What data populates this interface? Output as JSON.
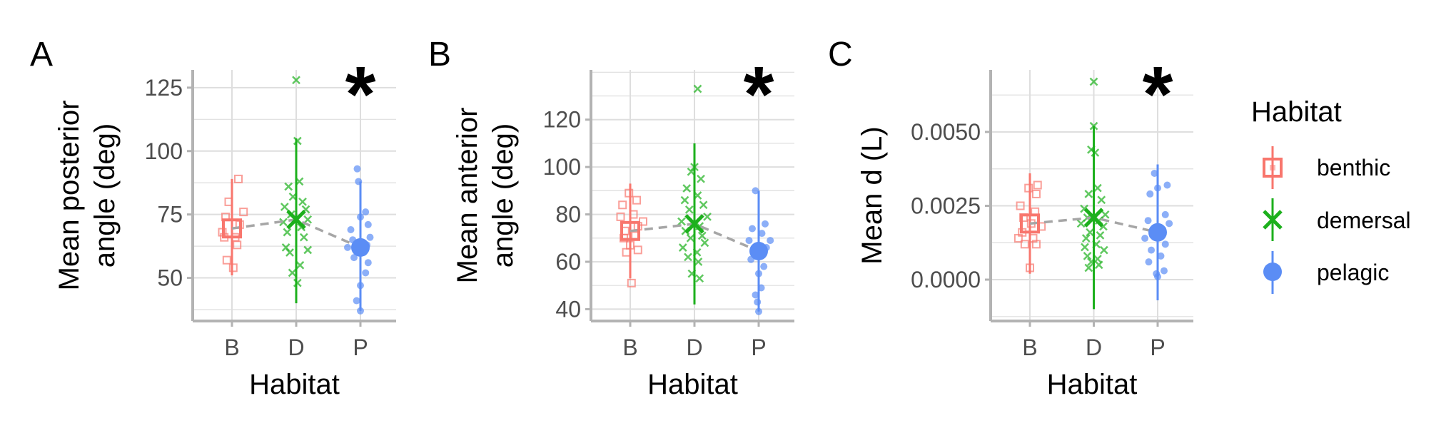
{
  "colors": {
    "benthic": "#F8766D",
    "demersal": "#1DB01D",
    "pelagic": "#5B8DF5",
    "grid": "#dedede",
    "axis": "#b3b3b3",
    "trend": "#a6a6a6"
  },
  "legend": {
    "title": "Habitat",
    "items": [
      {
        "key": "benthic",
        "label": "benthic",
        "shape": "square"
      },
      {
        "key": "demersal",
        "label": "demersal",
        "shape": "cross"
      },
      {
        "key": "pelagic",
        "label": "pelagic",
        "shape": "circle"
      }
    ]
  },
  "chart_data": [
    {
      "type": "scatter",
      "panel_label": "A",
      "significance": "*",
      "xlabel": "Habitat",
      "ylabel": [
        "Mean posterior",
        "angle (deg)"
      ],
      "categories": [
        "B",
        "D",
        "P"
      ],
      "ylim": [
        33,
        132
      ],
      "yticks": [
        50,
        75,
        100,
        125
      ],
      "ytick_labels": [
        "50",
        "75",
        "100",
        "125"
      ],
      "grid": true,
      "series": [
        {
          "habitat": "benthic",
          "mean": 69.5,
          "low": 51,
          "high": 89,
          "points": [
            [
              0.1,
              89
            ],
            [
              -0.05,
              80
            ],
            [
              0.18,
              76
            ],
            [
              -0.1,
              74
            ],
            [
              0.12,
              71
            ],
            [
              -0.15,
              68
            ],
            [
              0.05,
              66
            ],
            [
              -0.12,
              66
            ],
            [
              0.08,
              63
            ],
            [
              -0.08,
              57
            ],
            [
              0.02,
              54
            ]
          ]
        },
        {
          "habitat": "demersal",
          "mean": 73,
          "low": 40,
          "high": 105,
          "points": [
            [
              0.0,
              128
            ],
            [
              0.02,
              104
            ],
            [
              0.05,
              88
            ],
            [
              -0.12,
              86
            ],
            [
              -0.05,
              82
            ],
            [
              0.1,
              80
            ],
            [
              -0.18,
              78
            ],
            [
              0.15,
              77
            ],
            [
              -0.08,
              75
            ],
            [
              0.18,
              73
            ],
            [
              -0.2,
              72
            ],
            [
              0.08,
              70
            ],
            [
              -0.14,
              68
            ],
            [
              0.12,
              66
            ],
            [
              -0.16,
              62
            ],
            [
              0.18,
              61
            ],
            [
              -0.1,
              60
            ],
            [
              0.06,
              55
            ],
            [
              -0.06,
              52
            ],
            [
              0.02,
              48
            ]
          ]
        },
        {
          "habitat": "pelagic",
          "mean": 62,
          "low": 37,
          "high": 88,
          "points": [
            [
              -0.05,
              93
            ],
            [
              -0.03,
              88
            ],
            [
              0.08,
              76
            ],
            [
              0.0,
              74
            ],
            [
              0.12,
              71
            ],
            [
              -0.15,
              69
            ],
            [
              0.15,
              66
            ],
            [
              -0.12,
              65
            ],
            [
              0.1,
              63
            ],
            [
              -0.2,
              62
            ],
            [
              0.05,
              60
            ],
            [
              -0.1,
              58
            ],
            [
              0.12,
              56
            ],
            [
              0.08,
              52
            ],
            [
              0.0,
              47
            ],
            [
              -0.06,
              41
            ],
            [
              0.0,
              37
            ]
          ]
        }
      ]
    },
    {
      "type": "scatter",
      "panel_label": "B",
      "significance": "*",
      "xlabel": "Habitat",
      "ylabel": [
        "Mean anterior",
        "angle (deg)"
      ],
      "categories": [
        "B",
        "D",
        "P"
      ],
      "ylim": [
        35,
        141
      ],
      "yticks": [
        40,
        60,
        80,
        100,
        120
      ],
      "ytick_labels": [
        "40",
        "60",
        "80",
        "100",
        "120"
      ],
      "grid": true,
      "series": [
        {
          "habitat": "benthic",
          "mean": 73,
          "low": 53,
          "high": 93,
          "points": [
            [
              -0.02,
              89
            ],
            [
              0.1,
              86
            ],
            [
              -0.12,
              84
            ],
            [
              0.05,
              80
            ],
            [
              -0.15,
              79
            ],
            [
              0.2,
              77
            ],
            [
              0.12,
              75
            ],
            [
              -0.08,
              73
            ],
            [
              0.08,
              71
            ],
            [
              -0.1,
              70
            ],
            [
              0.0,
              67
            ],
            [
              0.12,
              65
            ],
            [
              -0.06,
              64
            ],
            [
              0.02,
              51
            ]
          ]
        },
        {
          "habitat": "demersal",
          "mean": 76,
          "low": 42,
          "high": 110,
          "points": [
            [
              0.05,
              133
            ],
            [
              0.0,
              100
            ],
            [
              -0.05,
              98
            ],
            [
              0.1,
              95
            ],
            [
              -0.12,
              91
            ],
            [
              0.05,
              88
            ],
            [
              -0.15,
              86
            ],
            [
              0.14,
              84
            ],
            [
              -0.08,
              82
            ],
            [
              0.2,
              79
            ],
            [
              -0.2,
              77
            ],
            [
              0.08,
              75
            ],
            [
              -0.14,
              73
            ],
            [
              0.12,
              71
            ],
            [
              -0.06,
              70
            ],
            [
              0.16,
              68
            ],
            [
              -0.18,
              66
            ],
            [
              0.04,
              64
            ],
            [
              -0.1,
              62
            ],
            [
              0.06,
              60
            ],
            [
              -0.04,
              55
            ],
            [
              0.08,
              53
            ]
          ]
        },
        {
          "habitat": "pelagic",
          "mean": 64.5,
          "low": 39,
          "high": 90,
          "points": [
            [
              -0.05,
              90
            ],
            [
              0.1,
              76
            ],
            [
              -0.1,
              74
            ],
            [
              0.05,
              72
            ],
            [
              0.18,
              69
            ],
            [
              -0.15,
              69
            ],
            [
              0.12,
              66
            ],
            [
              -0.08,
              65
            ],
            [
              0.02,
              63
            ],
            [
              -0.12,
              61
            ],
            [
              0.08,
              58
            ],
            [
              0.0,
              55
            ],
            [
              0.04,
              49
            ],
            [
              -0.05,
              46
            ],
            [
              -0.02,
              43
            ],
            [
              0.0,
              39
            ]
          ]
        }
      ]
    },
    {
      "type": "scatter",
      "panel_label": "C",
      "significance": "*",
      "xlabel": "Habitat",
      "ylabel": [
        "Mean d (L)"
      ],
      "categories": [
        "B",
        "D",
        "P"
      ],
      "ylim": [
        -0.0014,
        0.0071
      ],
      "yticks": [
        0.0,
        0.0025,
        0.005
      ],
      "ytick_labels": [
        "0.0000",
        "0.0025",
        "0.0050"
      ],
      "grid": true,
      "series": [
        {
          "habitat": "benthic",
          "mean": 0.0019,
          "low": 0.0002,
          "high": 0.0036,
          "points": [
            [
              0.12,
              0.0032
            ],
            [
              -0.02,
              0.0031
            ],
            [
              0.1,
              0.0029
            ],
            [
              -0.15,
              0.0025
            ],
            [
              0.08,
              0.0023
            ],
            [
              -0.1,
              0.0021
            ],
            [
              0.02,
              0.0019
            ],
            [
              0.18,
              0.0018
            ],
            [
              -0.12,
              0.0016
            ],
            [
              0.05,
              0.0014
            ],
            [
              -0.18,
              0.0014
            ],
            [
              0.1,
              0.0012
            ],
            [
              -0.08,
              0.0012
            ],
            [
              0.0,
              0.0004
            ]
          ]
        },
        {
          "habitat": "demersal",
          "mean": 0.0021,
          "low": -0.001,
          "high": 0.0052,
          "points": [
            [
              0.0,
              0.0067
            ],
            [
              0.0,
              0.0052
            ],
            [
              -0.04,
              0.0044
            ],
            [
              0.02,
              0.0043
            ],
            [
              0.06,
              0.0031
            ],
            [
              -0.08,
              0.0029
            ],
            [
              0.12,
              0.0027
            ],
            [
              -0.15,
              0.0024
            ],
            [
              0.18,
              0.0022
            ],
            [
              -0.1,
              0.0021
            ],
            [
              0.08,
              0.002
            ],
            [
              -0.2,
              0.0019
            ],
            [
              0.15,
              0.0018
            ],
            [
              -0.06,
              0.0016
            ],
            [
              0.1,
              0.0015
            ],
            [
              -0.12,
              0.0014
            ],
            [
              0.04,
              0.0012
            ],
            [
              -0.14,
              0.0011
            ],
            [
              0.16,
              0.001
            ],
            [
              -0.1,
              0.0008
            ],
            [
              0.06,
              0.0007
            ],
            [
              -0.04,
              0.0006
            ],
            [
              0.08,
              0.0005
            ],
            [
              -0.08,
              0.0004
            ]
          ]
        },
        {
          "habitat": "pelagic",
          "mean": 0.0016,
          "low": -0.0007,
          "high": 0.0039,
          "points": [
            [
              -0.05,
              0.0036
            ],
            [
              0.15,
              0.0032
            ],
            [
              0.0,
              0.0031
            ],
            [
              -0.12,
              0.0029
            ],
            [
              0.12,
              0.0022
            ],
            [
              -0.15,
              0.002
            ],
            [
              0.18,
              0.0019
            ],
            [
              0.08,
              0.0017
            ],
            [
              -0.08,
              0.0015
            ],
            [
              0.02,
              0.0015
            ],
            [
              -0.2,
              0.0014
            ],
            [
              0.12,
              0.0012
            ],
            [
              -0.1,
              0.001
            ],
            [
              0.05,
              0.0008
            ],
            [
              -0.14,
              0.0006
            ],
            [
              -0.02,
              0.0002
            ],
            [
              0.1,
              0.0003
            ],
            [
              0.0,
              0.0001
            ]
          ]
        }
      ]
    }
  ]
}
